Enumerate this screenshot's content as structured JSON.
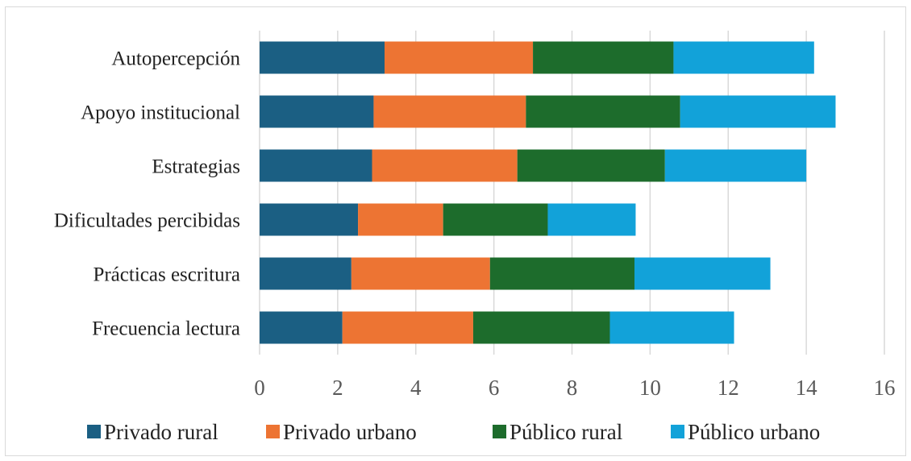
{
  "chart_data": {
    "type": "bar",
    "orientation": "horizontal",
    "stacked": true,
    "categories": [
      "Autopercepción",
      "Apoyo institucional",
      "Estrategias",
      "Dificultades percibidas",
      "Prácticas escritura",
      "Frecuencia lectura"
    ],
    "series": [
      {
        "name": "Privado rural",
        "color": "#1b5f83",
        "values": [
          3.2,
          2.92,
          2.88,
          2.52,
          2.35,
          2.12
        ]
      },
      {
        "name": "Privado urbano",
        "color": "#ed7433",
        "values": [
          3.8,
          3.9,
          3.72,
          2.18,
          3.55,
          3.35
        ]
      },
      {
        "name": "Público rural",
        "color": "#1d6c2c",
        "values": [
          3.6,
          3.95,
          3.78,
          2.68,
          3.7,
          3.5
        ]
      },
      {
        "name": "Público urbano",
        "color": "#12a2d9",
        "values": [
          3.6,
          3.98,
          3.62,
          2.25,
          3.48,
          3.18
        ]
      }
    ],
    "xlim": [
      0,
      16
    ],
    "xticks": [
      "0",
      "2",
      "4",
      "6",
      "8",
      "10",
      "12",
      "14",
      "16"
    ],
    "grid": true,
    "legend": "bottom"
  }
}
